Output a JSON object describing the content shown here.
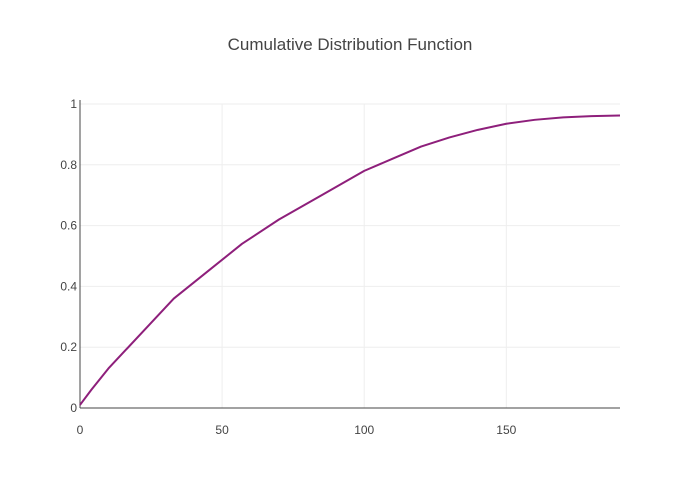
{
  "chart_data": {
    "type": "line",
    "title": "Cumulative Distribution Function",
    "xlabel": "",
    "ylabel": "",
    "xlim": [
      0,
      190
    ],
    "ylim": [
      0,
      1
    ],
    "grid": true,
    "x_ticks": [
      0,
      50,
      100,
      150
    ],
    "y_ticks": [
      0,
      0.2,
      0.4,
      0.6,
      0.8,
      1
    ],
    "x_tick_labels": [
      "0",
      "50",
      "100",
      "150"
    ],
    "y_tick_labels": [
      "0",
      "0.2",
      "0.4",
      "0.6",
      "0.8",
      "1"
    ],
    "series": [
      {
        "color": "#8e1f7b",
        "x": [
          0,
          4,
          10,
          16,
          24,
          33,
          45,
          57,
          70,
          85,
          100,
          110,
          120,
          130,
          140,
          150,
          160,
          170,
          180,
          190
        ],
        "y": [
          0.01,
          0.06,
          0.13,
          0.19,
          0.27,
          0.36,
          0.45,
          0.54,
          0.62,
          0.7,
          0.78,
          0.82,
          0.86,
          0.89,
          0.915,
          0.935,
          0.948,
          0.956,
          0.96,
          0.962
        ]
      }
    ]
  }
}
